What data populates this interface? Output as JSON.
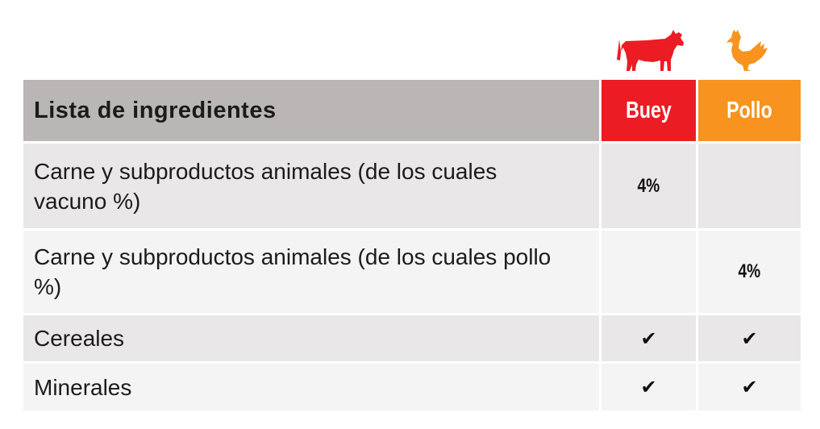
{
  "icons": {
    "col_a": "cow-icon",
    "col_b": "chicken-icon"
  },
  "colors": {
    "col_a": "#ec1c24",
    "col_b": "#f7931e",
    "header_bg": "#bab6b5"
  },
  "header": {
    "title": "Lista de ingredientes",
    "col_a": "Buey",
    "col_b": "Pollo"
  },
  "rows": [
    {
      "name": "Carne y subproductos animales (de los cuales vacuno %)",
      "col_a": "4%",
      "col_b": ""
    },
    {
      "name": "Carne y subproductos animales (de los cuales pollo %)",
      "col_a": "",
      "col_b": "4%"
    },
    {
      "name": "Cereales",
      "col_a": "✔",
      "col_b": "✔"
    },
    {
      "name": "Minerales",
      "col_a": "✔",
      "col_b": "✔"
    }
  ]
}
